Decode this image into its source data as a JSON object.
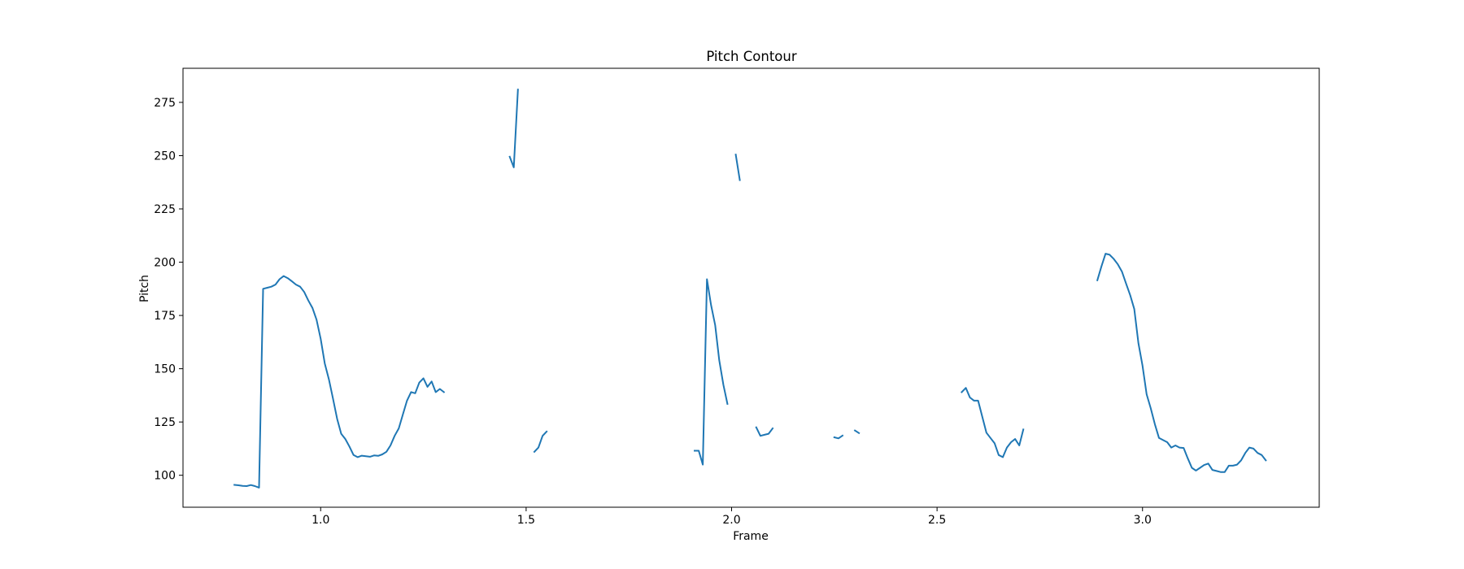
{
  "chart_data": {
    "type": "line",
    "title": "Pitch Contour",
    "xlabel": "Frame",
    "ylabel": "Pitch",
    "xlim": [
      0.665,
      3.43
    ],
    "ylim": [
      85,
      291
    ],
    "x_ticks": [
      1.0,
      1.5,
      2.0,
      2.5,
      3.0
    ],
    "x_tick_labels": [
      "1.0",
      "1.5",
      "2.0",
      "2.5",
      "3.0"
    ],
    "y_ticks": [
      100,
      125,
      150,
      175,
      200,
      225,
      250,
      275
    ],
    "y_tick_labels": [
      "100",
      "125",
      "150",
      "175",
      "200",
      "225",
      "250",
      "275"
    ],
    "grid": false,
    "legend": null,
    "color": "#1f77b4",
    "segments": [
      {
        "points": [
          [
            0.79,
            95.5
          ],
          [
            0.8,
            95.3
          ],
          [
            0.81,
            95.0
          ],
          [
            0.82,
            94.9
          ],
          [
            0.83,
            95.4
          ],
          [
            0.84,
            94.9
          ],
          [
            0.85,
            94.2
          ],
          [
            0.86,
            187.5
          ],
          [
            0.87,
            188.0
          ],
          [
            0.88,
            188.5
          ],
          [
            0.89,
            189.5
          ],
          [
            0.9,
            192.0
          ],
          [
            0.91,
            193.5
          ],
          [
            0.92,
            192.5
          ],
          [
            0.93,
            191.0
          ],
          [
            0.94,
            189.5
          ],
          [
            0.95,
            188.5
          ],
          [
            0.96,
            186.0
          ],
          [
            0.97,
            182.0
          ],
          [
            0.98,
            178.5
          ],
          [
            0.99,
            173.0
          ],
          [
            1.0,
            164.0
          ],
          [
            1.01,
            152.5
          ],
          [
            1.02,
            145.0
          ],
          [
            1.03,
            136.0
          ],
          [
            1.04,
            126.5
          ],
          [
            1.05,
            119.5
          ],
          [
            1.06,
            117.0
          ],
          [
            1.07,
            113.5
          ],
          [
            1.08,
            109.5
          ],
          [
            1.09,
            108.5
          ],
          [
            1.1,
            109.2
          ],
          [
            1.11,
            108.9
          ],
          [
            1.12,
            108.7
          ],
          [
            1.13,
            109.3
          ],
          [
            1.14,
            109.1
          ],
          [
            1.15,
            109.8
          ],
          [
            1.16,
            111.0
          ],
          [
            1.17,
            114.0
          ],
          [
            1.18,
            118.5
          ],
          [
            1.19,
            122.0
          ],
          [
            1.2,
            128.5
          ],
          [
            1.21,
            135.0
          ],
          [
            1.22,
            139.0
          ],
          [
            1.23,
            138.5
          ],
          [
            1.24,
            143.5
          ],
          [
            1.25,
            145.5
          ],
          [
            1.26,
            141.5
          ],
          [
            1.27,
            144.0
          ],
          [
            1.28,
            139.0
          ],
          [
            1.29,
            140.5
          ],
          [
            1.3,
            139.0
          ]
        ]
      },
      {
        "points": [
          [
            1.46,
            249.5
          ],
          [
            1.47,
            244.5
          ],
          [
            1.48,
            281.0
          ]
        ]
      },
      {
        "points": [
          [
            1.52,
            111.0
          ],
          [
            1.53,
            113.0
          ],
          [
            1.54,
            118.5
          ],
          [
            1.55,
            120.5
          ]
        ]
      },
      {
        "points": [
          [
            1.91,
            111.5
          ],
          [
            1.92,
            111.5
          ],
          [
            1.93,
            105.0
          ],
          [
            1.94,
            192.0
          ],
          [
            1.95,
            180.0
          ],
          [
            1.96,
            170.5
          ],
          [
            1.97,
            154.0
          ],
          [
            1.98,
            142.5
          ],
          [
            1.99,
            133.5
          ]
        ]
      },
      {
        "points": [
          [
            2.01,
            250.5
          ],
          [
            2.02,
            238.5
          ]
        ]
      },
      {
        "points": [
          [
            2.06,
            122.5
          ],
          [
            2.07,
            118.5
          ],
          [
            2.08,
            119.0
          ],
          [
            2.09,
            119.5
          ],
          [
            2.1,
            122.0
          ]
        ]
      },
      {
        "points": [
          [
            2.25,
            117.8
          ],
          [
            2.26,
            117.3
          ],
          [
            2.27,
            118.6
          ]
        ]
      },
      {
        "points": [
          [
            2.3,
            121.0
          ],
          [
            2.31,
            119.8
          ]
        ]
      },
      {
        "points": [
          [
            2.56,
            139.0
          ],
          [
            2.57,
            141.0
          ],
          [
            2.58,
            136.5
          ],
          [
            2.59,
            135.0
          ],
          [
            2.6,
            135.0
          ],
          [
            2.61,
            127.5
          ],
          [
            2.62,
            120.0
          ],
          [
            2.63,
            117.5
          ],
          [
            2.64,
            115.0
          ],
          [
            2.65,
            109.5
          ],
          [
            2.66,
            108.5
          ],
          [
            2.67,
            113.0
          ],
          [
            2.68,
            115.5
          ],
          [
            2.69,
            117.0
          ],
          [
            2.7,
            114.0
          ],
          [
            2.71,
            121.5
          ]
        ]
      },
      {
        "points": [
          [
            2.89,
            191.5
          ],
          [
            2.9,
            198.0
          ],
          [
            2.91,
            204.0
          ],
          [
            2.92,
            203.5
          ],
          [
            2.93,
            201.5
          ],
          [
            2.94,
            199.0
          ],
          [
            2.95,
            195.5
          ],
          [
            2.96,
            190.0
          ],
          [
            2.97,
            184.5
          ],
          [
            2.98,
            178.0
          ],
          [
            2.99,
            162.0
          ],
          [
            3.0,
            151.5
          ],
          [
            3.01,
            138.0
          ],
          [
            3.02,
            131.5
          ],
          [
            3.03,
            124.0
          ],
          [
            3.04,
            117.5
          ],
          [
            3.05,
            116.5
          ],
          [
            3.06,
            115.5
          ],
          [
            3.07,
            113.0
          ],
          [
            3.08,
            114.0
          ],
          [
            3.09,
            113.0
          ],
          [
            3.1,
            112.8
          ],
          [
            3.11,
            108.0
          ],
          [
            3.12,
            103.5
          ],
          [
            3.13,
            102.2
          ],
          [
            3.14,
            103.5
          ],
          [
            3.15,
            104.8
          ],
          [
            3.16,
            105.5
          ],
          [
            3.17,
            102.5
          ],
          [
            3.18,
            102.0
          ],
          [
            3.19,
            101.5
          ],
          [
            3.2,
            101.5
          ],
          [
            3.21,
            104.5
          ],
          [
            3.22,
            104.5
          ],
          [
            3.23,
            105.0
          ],
          [
            3.24,
            107.0
          ],
          [
            3.25,
            110.5
          ],
          [
            3.26,
            113.0
          ],
          [
            3.27,
            112.5
          ],
          [
            3.28,
            110.5
          ],
          [
            3.29,
            109.5
          ],
          [
            3.3,
            107.0
          ]
        ]
      }
    ]
  }
}
